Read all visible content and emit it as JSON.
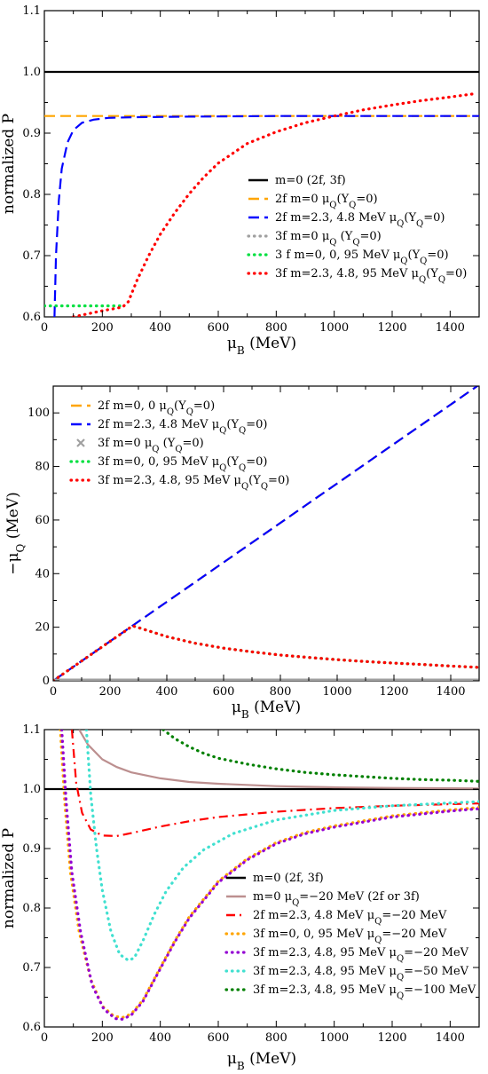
{
  "chart_data": [
    {
      "type": "line",
      "title": "",
      "ylabel": "normalized P",
      "xlabel_main": "μ",
      "xlabel_sub": "B",
      "xlabel_unit": " (MeV)",
      "xlim": [
        0,
        1500
      ],
      "ylim": [
        0.6,
        1.1
      ],
      "x_ticks": [
        "0",
        "200",
        "400",
        "600",
        "800",
        "1000",
        "1200",
        "1400"
      ],
      "y_ticks": [
        "0.6",
        "0.7",
        "0.8",
        "0.9",
        "1.0",
        "1.1"
      ],
      "legend_position": "center-right",
      "series": [
        {
          "name": "m=0 (2f, 3f)",
          "color": "#000000",
          "style": "solid",
          "x": [
            0,
            1500
          ],
          "y": [
            1.0,
            1.0
          ]
        },
        {
          "name": "2f m=0 μQ(YQ=0)",
          "color": "#ffa500",
          "style": "dash",
          "x": [
            0,
            1500
          ],
          "y": [
            0.928,
            0.928
          ]
        },
        {
          "name": "2f m=2.3, 4.8 MeV μQ(YQ=0)",
          "color": "#0000ff",
          "style": "dash",
          "x": [
            35,
            40,
            50,
            60,
            80,
            100,
            130,
            170,
            220,
            300,
            500,
            800,
            1100,
            1500
          ],
          "y": [
            0.6,
            0.7,
            0.79,
            0.842,
            0.885,
            0.905,
            0.917,
            0.922,
            0.925,
            0.926,
            0.927,
            0.928,
            0.928,
            0.928
          ]
        },
        {
          "name": "3f m=0 μQ (YQ=0)",
          "color": "#a0a0a0",
          "style": "dot",
          "x": [],
          "y": []
        },
        {
          "name": "3 f m=0, 0, 95 MeV μQ(YQ=0)",
          "color": "#00e040",
          "style": "dot",
          "x": [
            0,
            100,
            200,
            270
          ],
          "y": [
            0.618,
            0.618,
            0.618,
            0.618
          ]
        },
        {
          "name": "3f m=2.3, 4.8, 95 MeV μQ(YQ=0)",
          "color": "#ff0000",
          "style": "dot",
          "x": [
            100,
            200,
            270,
            290,
            320,
            360,
            400,
            450,
            500,
            550,
            600,
            700,
            800,
            900,
            1000,
            1100,
            1200,
            1300,
            1400,
            1480
          ],
          "y": [
            0.6,
            0.61,
            0.616,
            0.625,
            0.66,
            0.7,
            0.735,
            0.77,
            0.801,
            0.828,
            0.851,
            0.883,
            0.902,
            0.917,
            0.928,
            0.938,
            0.946,
            0.953,
            0.959,
            0.964
          ]
        }
      ]
    },
    {
      "type": "line",
      "title": "",
      "ylabel_main": "−μ",
      "ylabel_sub": "Q",
      "ylabel_unit": " (MeV)",
      "xlabel_main": "μ",
      "xlabel_sub": "B",
      "xlabel_unit": " (MeV)",
      "xlim": [
        0,
        1500
      ],
      "ylim": [
        0,
        110
      ],
      "x_ticks": [
        "0",
        "200",
        "400",
        "600",
        "800",
        "1000",
        "1200",
        "1400"
      ],
      "y_ticks": [
        "0",
        "20",
        "40",
        "60",
        "80",
        "100"
      ],
      "legend_position": "top-left",
      "series": [
        {
          "name": "2f m=0, 0 μQ(YQ=0)",
          "color": "#ffa500",
          "style": "dash",
          "x": [
            0,
            1500
          ],
          "y": [
            0,
            110.5
          ]
        },
        {
          "name": "2f m=2.3, 4.8 MeV μQ(YQ=0)",
          "color": "#0000ff",
          "style": "dash",
          "x": [
            0,
            1500
          ],
          "y": [
            0,
            110.5
          ]
        },
        {
          "name": "3f m=0 μQ (YQ=0)",
          "color": "#a0a0a0",
          "style": "solid",
          "x": [
            0,
            1500
          ],
          "y": [
            0,
            0
          ]
        },
        {
          "name": "3f m=0, 0, 95 MeV μQ(YQ=0)",
          "color": "#00e040",
          "style": "dot",
          "x": [
            0,
            100,
            200,
            280,
            320,
            400,
            500,
            600,
            700,
            800,
            900,
            1000,
            1100,
            1200,
            1300,
            1400,
            1500
          ],
          "y": [
            0,
            7.4,
            14.7,
            20.5,
            19.2,
            16.5,
            14.0,
            12.2,
            10.8,
            9.6,
            8.7,
            7.9,
            7.2,
            6.6,
            6.1,
            5.5,
            5.0
          ]
        },
        {
          "name": "3f m=2.3, 4.8, 95 MeV μQ(YQ=0)",
          "color": "#ff0000",
          "style": "dot",
          "x": [
            0,
            100,
            200,
            280,
            320,
            400,
            500,
            600,
            700,
            800,
            900,
            1000,
            1100,
            1200,
            1300,
            1400,
            1500
          ],
          "y": [
            0,
            7.4,
            14.7,
            20.5,
            19.2,
            16.5,
            14.0,
            12.2,
            10.8,
            9.6,
            8.7,
            7.9,
            7.2,
            6.6,
            6.1,
            5.5,
            5.0
          ]
        }
      ]
    },
    {
      "type": "line",
      "title": "",
      "ylabel": "normalized P",
      "xlabel_main": "μ",
      "xlabel_sub": "B",
      "xlabel_unit": " (MeV)",
      "xlim": [
        0,
        1500
      ],
      "ylim": [
        0.6,
        1.1
      ],
      "x_ticks": [
        "0",
        "200",
        "400",
        "600",
        "800",
        "1000",
        "1200",
        "1400"
      ],
      "y_ticks": [
        "0.6",
        "0.7",
        "0.8",
        "0.9",
        "1.0",
        "1.1"
      ],
      "legend_position": "bottom-right",
      "series": [
        {
          "name": "m=0 (2f, 3f)",
          "color": "#000000",
          "style": "solid",
          "x": [
            0,
            1500
          ],
          "y": [
            1.0,
            1.0
          ]
        },
        {
          "name": "m=0 μQ=−20 MeV (2f or 3f)",
          "color": "#bc8f8f",
          "style": "solid",
          "x": [
            120,
            150,
            200,
            250,
            300,
            400,
            500,
            600,
            800,
            1000,
            1200,
            1500
          ],
          "y": [
            1.1,
            1.075,
            1.05,
            1.037,
            1.028,
            1.018,
            1.012,
            1.009,
            1.005,
            1.003,
            1.002,
            1.001
          ]
        },
        {
          "name": "2f m=2.3, 4.8 MeV μQ=−20 MeV",
          "color": "#ff0000",
          "style": "dashdot",
          "x": [
            95,
            110,
            130,
            160,
            200,
            250,
            300,
            400,
            500,
            600,
            800,
            1000,
            1200,
            1500
          ],
          "y": [
            1.1,
            1.01,
            0.96,
            0.932,
            0.922,
            0.921,
            0.926,
            0.937,
            0.946,
            0.953,
            0.962,
            0.968,
            0.972,
            0.976
          ]
        },
        {
          "name": "3f m=0, 0, 95 MeV μQ=−20 MeV",
          "color": "#ffa500",
          "style": "dot",
          "x": [
            55,
            70,
            90,
            120,
            160,
            200,
            240,
            270,
            300,
            340,
            400,
            450,
            500,
            600,
            700,
            800,
            900,
            1000,
            1200,
            1400,
            1500
          ],
          "y": [
            1.1,
            0.98,
            0.86,
            0.76,
            0.68,
            0.635,
            0.618,
            0.616,
            0.622,
            0.645,
            0.7,
            0.745,
            0.785,
            0.845,
            0.883,
            0.91,
            0.927,
            0.938,
            0.955,
            0.965,
            0.969
          ]
        },
        {
          "name": "3f m=2.3, 4.8, 95 MeV μQ=−20 MeV",
          "color": "#9400d3",
          "style": "dot",
          "x": [
            60,
            75,
            95,
            125,
            165,
            205,
            245,
            270,
            300,
            340,
            400,
            450,
            500,
            600,
            700,
            800,
            900,
            1000,
            1200,
            1400,
            1500
          ],
          "y": [
            1.1,
            0.98,
            0.86,
            0.76,
            0.67,
            0.63,
            0.614,
            0.613,
            0.62,
            0.643,
            0.698,
            0.743,
            0.783,
            0.843,
            0.881,
            0.908,
            0.925,
            0.936,
            0.953,
            0.963,
            0.967
          ]
        },
        {
          "name": "3f m=2.3, 4.8, 95 MeV μQ=−50 MeV",
          "color": "#40e0d0",
          "style": "dot",
          "x": [
            145,
            160,
            180,
            200,
            230,
            260,
            290,
            310,
            340,
            380,
            420,
            480,
            550,
            650,
            800,
            1000,
            1200,
            1500
          ],
          "y": [
            1.1,
            0.99,
            0.9,
            0.83,
            0.76,
            0.722,
            0.712,
            0.716,
            0.745,
            0.79,
            0.828,
            0.868,
            0.898,
            0.925,
            0.948,
            0.964,
            0.972,
            0.979
          ]
        },
        {
          "name": "3f m=2.3, 4.8, 95 MeV μQ=−100 MeV",
          "color": "#008000",
          "style": "dot",
          "x": [
            410,
            450,
            500,
            550,
            600,
            700,
            800,
            900,
            1000,
            1100,
            1200,
            1300,
            1400,
            1500
          ],
          "y": [
            1.1,
            1.085,
            1.071,
            1.06,
            1.052,
            1.042,
            1.034,
            1.028,
            1.024,
            1.021,
            1.018,
            1.016,
            1.015,
            1.013
          ]
        }
      ]
    }
  ]
}
